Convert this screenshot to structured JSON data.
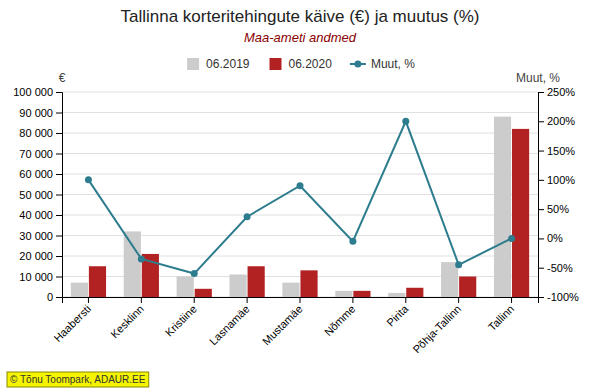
{
  "chart_data": {
    "type": "bar",
    "title": "Tallinna korteritehingute käive (€) ja muutus (%)",
    "subtitle": "Maa-ameti andmed",
    "ylabel": "€",
    "y2label": "Muut, %",
    "annotation": "© Tõnu Toompark, ADAUR.EE",
    "categories": [
      "Haabersti",
      "Kesklinn",
      "Kristiine",
      "Lasnamäe",
      "Mustamäe",
      "Nõmme",
      "Pirita",
      "Põhja-Tallinn",
      "Tallinn"
    ],
    "series": [
      {
        "name": "06.2019",
        "type": "bar",
        "color": "#cccccc",
        "values": [
          7000,
          32000,
          10000,
          11000,
          7000,
          3000,
          2000,
          17000,
          88000
        ]
      },
      {
        "name": "06.2020",
        "type": "bar",
        "color": "#b22222",
        "values": [
          15000,
          21000,
          4000,
          15000,
          13000,
          3000,
          4500,
          10000,
          82000
        ]
      },
      {
        "name": "Muut, %",
        "type": "line",
        "axis": "y2",
        "color": "#2e7d8e",
        "marker": "circle",
        "values": [
          100,
          -35,
          -60,
          37,
          90,
          -5,
          200,
          -45,
          0
        ]
      }
    ],
    "ylim": [
      0,
      100000
    ],
    "yticks": [
      0,
      {
        "value": 10000,
        "label": "10 000"
      },
      {
        "value": 20000,
        "label": "20 000"
      },
      {
        "value": 30000,
        "label": "30 000"
      },
      {
        "value": 40000,
        "label": "40 000"
      },
      {
        "value": 50000,
        "label": "50 000"
      },
      {
        "value": 60000,
        "label": "60 000"
      },
      {
        "value": 70000,
        "label": "70 000"
      },
      {
        "value": 80000,
        "label": "80 000"
      },
      {
        "value": 90000,
        "label": "90 000"
      },
      {
        "value": 100000,
        "label": "100 000"
      }
    ],
    "y2lim": [
      -100,
      250
    ],
    "y2ticks": [
      {
        "value": -100,
        "label": "-100%"
      },
      {
        "value": -50,
        "label": "-50%"
      },
      {
        "value": 0,
        "label": "0%"
      },
      {
        "value": 50,
        "label": "50%"
      },
      {
        "value": 100,
        "label": "100%"
      },
      {
        "value": 150,
        "label": "150%"
      },
      {
        "value": 200,
        "label": "200%"
      },
      {
        "value": 250,
        "label": "250%"
      }
    ],
    "grid": true,
    "legend": "top"
  }
}
